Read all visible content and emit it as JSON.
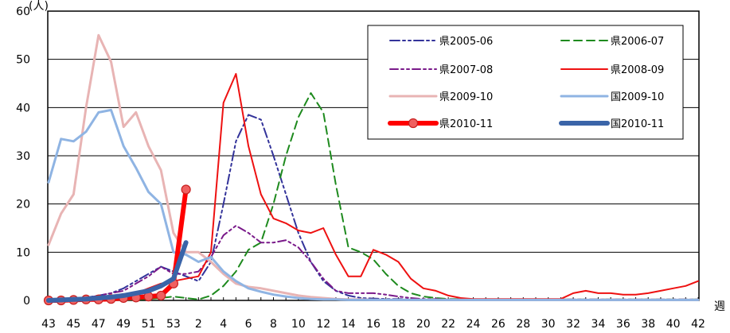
{
  "chart_data": {
    "type": "line",
    "title": "",
    "ylabel_partial": "(人)",
    "xlabel": "週",
    "ylim": [
      0,
      60
    ],
    "yticks": [
      0,
      10,
      20,
      30,
      40,
      50,
      60
    ],
    "grid": "horizontal",
    "legend_position": "top-right",
    "x_categories": [
      "43",
      "44",
      "45",
      "46",
      "47",
      "48",
      "49",
      "50",
      "51",
      "52",
      "53",
      "1",
      "2",
      "3",
      "4",
      "5",
      "6",
      "7",
      "8",
      "9",
      "10",
      "11",
      "12",
      "13",
      "14",
      "15",
      "16",
      "17",
      "18",
      "19",
      "20",
      "21",
      "22",
      "23",
      "24",
      "25",
      "26",
      "27",
      "28",
      "29",
      "30",
      "31",
      "32",
      "33",
      "34",
      "35",
      "36",
      "37",
      "38",
      "39",
      "40",
      "41",
      "42"
    ],
    "x_tick_labels": [
      "43",
      "45",
      "47",
      "49",
      "51",
      "53",
      "2",
      "4",
      "6",
      "8",
      "10",
      "12",
      "14",
      "16",
      "18",
      "20",
      "22",
      "24",
      "26",
      "28",
      "30",
      "32",
      "34",
      "36",
      "38",
      "40",
      "42"
    ],
    "series": [
      {
        "name": "県2005-06",
        "color": "#33339a",
        "dash": "12,4,3,4,3,4",
        "width": 2,
        "values": [
          0,
          0,
          0.3,
          0.6,
          1,
          1.5,
          2.5,
          4,
          5.5,
          7,
          6,
          5,
          4,
          8,
          20,
          33,
          38.5,
          37.5,
          30,
          22,
          14,
          8,
          4,
          2,
          1,
          0.5,
          0.4,
          0.3,
          0.3,
          0.2,
          0.1,
          0.1,
          0.1,
          0.1,
          0.1,
          0.1,
          0.1,
          0.1,
          0.1,
          0.1,
          0.1,
          0.1,
          0.1,
          0.1,
          0.1,
          0.1,
          0.1,
          0.1,
          0.1,
          0.1,
          0.1,
          0.1,
          0.1
        ]
      },
      {
        "name": "県2006-07",
        "color": "#1e8a1e",
        "dash": "10,6",
        "width": 2,
        "values": [
          0,
          0,
          0,
          0,
          0,
          0.1,
          0.1,
          0.2,
          0.3,
          0.5,
          0.8,
          0.5,
          0.2,
          1,
          3,
          6,
          10.5,
          12,
          20,
          30,
          38,
          43,
          39,
          24,
          11,
          10,
          8.5,
          5.5,
          3,
          1.5,
          0.8,
          0.5,
          0.3,
          0.3,
          0.2,
          0.2,
          0.2,
          0.2,
          0.2,
          0.2,
          0.2,
          0.2,
          0.2,
          0.2,
          0.2,
          0.2,
          0.2,
          0.2,
          0.2,
          0.2,
          0.2,
          0.2,
          0.2
        ]
      },
      {
        "name": "県2007-08",
        "color": "#7a1a8a",
        "dash": "10,4,3,4,3,4",
        "width": 2,
        "values": [
          0,
          0,
          0.2,
          0.5,
          1,
          1.5,
          2,
          3.5,
          5,
          7,
          5.5,
          5.5,
          6,
          9,
          13.5,
          15.5,
          14,
          12,
          12,
          12.5,
          11,
          8,
          4.5,
          2,
          1.5,
          1.5,
          1.5,
          1.2,
          0.8,
          0.5,
          0.3,
          0.3,
          0.2,
          0.2,
          0.2,
          0.2,
          0.2,
          0.2,
          0.2,
          0.2,
          0.2,
          0.2,
          0.2,
          0.2,
          0.2,
          0.2,
          0.2,
          0.2,
          0.2,
          0.2,
          0.2,
          0.2,
          0.2
        ]
      },
      {
        "name": "県2008-09",
        "color": "#ee1111",
        "dash": "",
        "width": 2,
        "values": [
          0,
          0,
          0,
          0,
          0.3,
          0.6,
          1,
          1.5,
          2.5,
          3.5,
          4,
          4.5,
          5,
          10,
          41,
          47,
          32,
          22,
          17,
          16,
          14.5,
          14,
          15,
          9.5,
          5,
          5,
          10.5,
          9.5,
          8,
          4.5,
          2.5,
          2,
          1,
          0.5,
          0.3,
          0.3,
          0.3,
          0.3,
          0.3,
          0.3,
          0.3,
          0.3,
          1.5,
          2,
          1.5,
          1.5,
          1.2,
          1.2,
          1.5,
          2,
          2.5,
          3,
          4
        ]
      },
      {
        "name": "県2009-10",
        "color": "#e8b4b4",
        "dash": "",
        "width": 3,
        "values": [
          11.5,
          18,
          22,
          40,
          55,
          49.5,
          36,
          39,
          32,
          27,
          14,
          10,
          10,
          8,
          5.5,
          3.5,
          2.8,
          2.5,
          2,
          1.5,
          1,
          0.7,
          0.5,
          0.3,
          0.2,
          0.2,
          0.1,
          0.1,
          0.1,
          0.1,
          0.1,
          0.1,
          0.1,
          0.1,
          0.1,
          0.1,
          0.1,
          0.1,
          0.1,
          0.1,
          0.1,
          0.1,
          0.1,
          0.1,
          0.1,
          0.1,
          0.1,
          0.1,
          0.1,
          0.1,
          0.1,
          0.1,
          0.1
        ]
      },
      {
        "name": "国2009-10",
        "color": "#8fb4e3",
        "dash": "",
        "width": 3,
        "values": [
          24.5,
          33.5,
          33,
          35,
          39,
          39.5,
          32,
          27.5,
          22.5,
          20,
          10,
          9.5,
          8,
          9,
          6,
          4,
          2.5,
          1.8,
          1.2,
          0.8,
          0.5,
          0.3,
          0.2,
          0.2,
          0.1,
          0.1,
          0.1,
          0.1,
          0.1,
          0.1,
          0.1,
          0.1,
          0.1,
          0.1,
          0.1,
          0.1,
          0.1,
          0.1,
          0.1,
          0.1,
          0.1,
          0.1,
          0.1,
          0.1,
          0.1,
          0.1,
          0.1,
          0.1,
          0.1,
          0.1,
          0.1,
          0.1,
          0.1
        ]
      },
      {
        "name": "県2010-11",
        "color": "#ff0000",
        "dash": "",
        "width": 6,
        "marker": true,
        "values": [
          0,
          0,
          0.1,
          0.2,
          0.2,
          0.3,
          0.5,
          0.6,
          0.8,
          1,
          3.5,
          23
        ]
      },
      {
        "name": "国2010-11",
        "color": "#3a64a8",
        "dash": "",
        "width": 6,
        "values": [
          0,
          0.1,
          0.2,
          0.3,
          0.5,
          0.7,
          1,
          1.5,
          2,
          3,
          4.5,
          12
        ]
      }
    ]
  }
}
